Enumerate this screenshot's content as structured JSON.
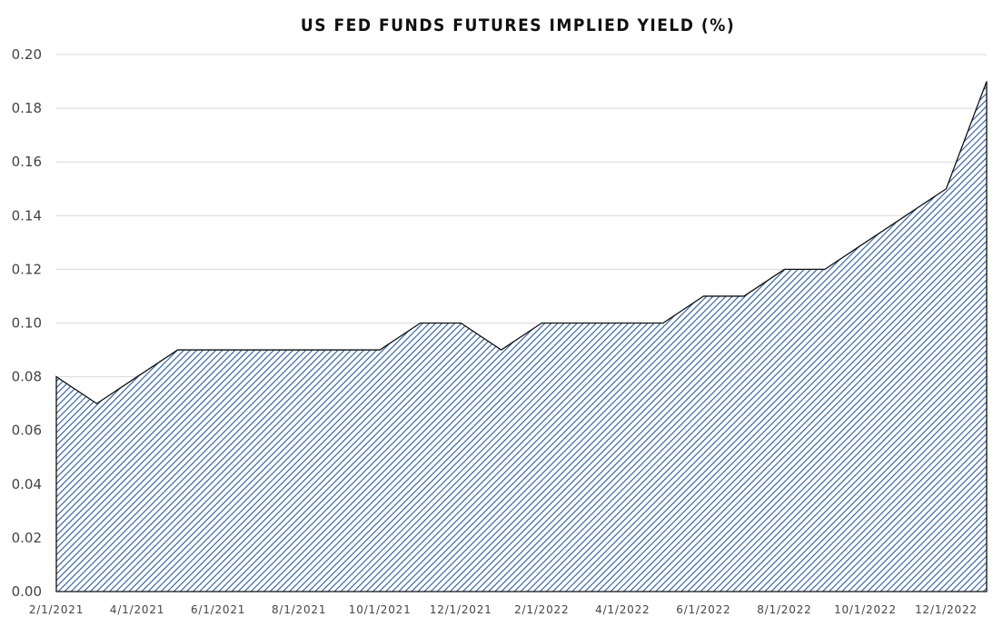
{
  "chart_data": {
    "type": "area",
    "title": "US FED FUNDS FUTURES IMPLIED YIELD (%)",
    "xlabel": "",
    "ylabel": "",
    "x": [
      "2/1/2021",
      "3/1/2021",
      "4/1/2021",
      "5/1/2021",
      "6/1/2021",
      "7/1/2021",
      "8/1/2021",
      "9/1/2021",
      "10/1/2021",
      "11/1/2021",
      "12/1/2021",
      "1/1/2022",
      "2/1/2022",
      "3/1/2022",
      "4/1/2022",
      "5/1/2022",
      "6/1/2022",
      "7/1/2022",
      "8/1/2022",
      "9/1/2022",
      "10/1/2022",
      "11/1/2022",
      "12/1/2022",
      "1/1/2023"
    ],
    "values": [
      0.08,
      0.07,
      0.08,
      0.09,
      0.09,
      0.09,
      0.09,
      0.09,
      0.09,
      0.1,
      0.1,
      0.09,
      0.1,
      0.1,
      0.1,
      0.1,
      0.11,
      0.11,
      0.12,
      0.12,
      0.13,
      0.14,
      0.15,
      0.19
    ],
    "x_tick_labels": [
      "2/1/2021",
      "4/1/2021",
      "6/1/2021",
      "8/1/2021",
      "10/1/2021",
      "12/1/2021",
      "2/1/2022",
      "4/1/2022",
      "6/1/2022",
      "8/1/2022",
      "10/1/2022",
      "12/1/2022"
    ],
    "y_tick_labels": [
      "0.00",
      "0.02",
      "0.04",
      "0.06",
      "0.08",
      "0.10",
      "0.12",
      "0.14",
      "0.16",
      "0.18",
      "0.20"
    ],
    "ylim": [
      0,
      0.2
    ],
    "grid": true,
    "legend": "none",
    "fill_color": "#7fa7d6",
    "hatch_color": "#2a5a9a",
    "line_color": "#111111"
  }
}
